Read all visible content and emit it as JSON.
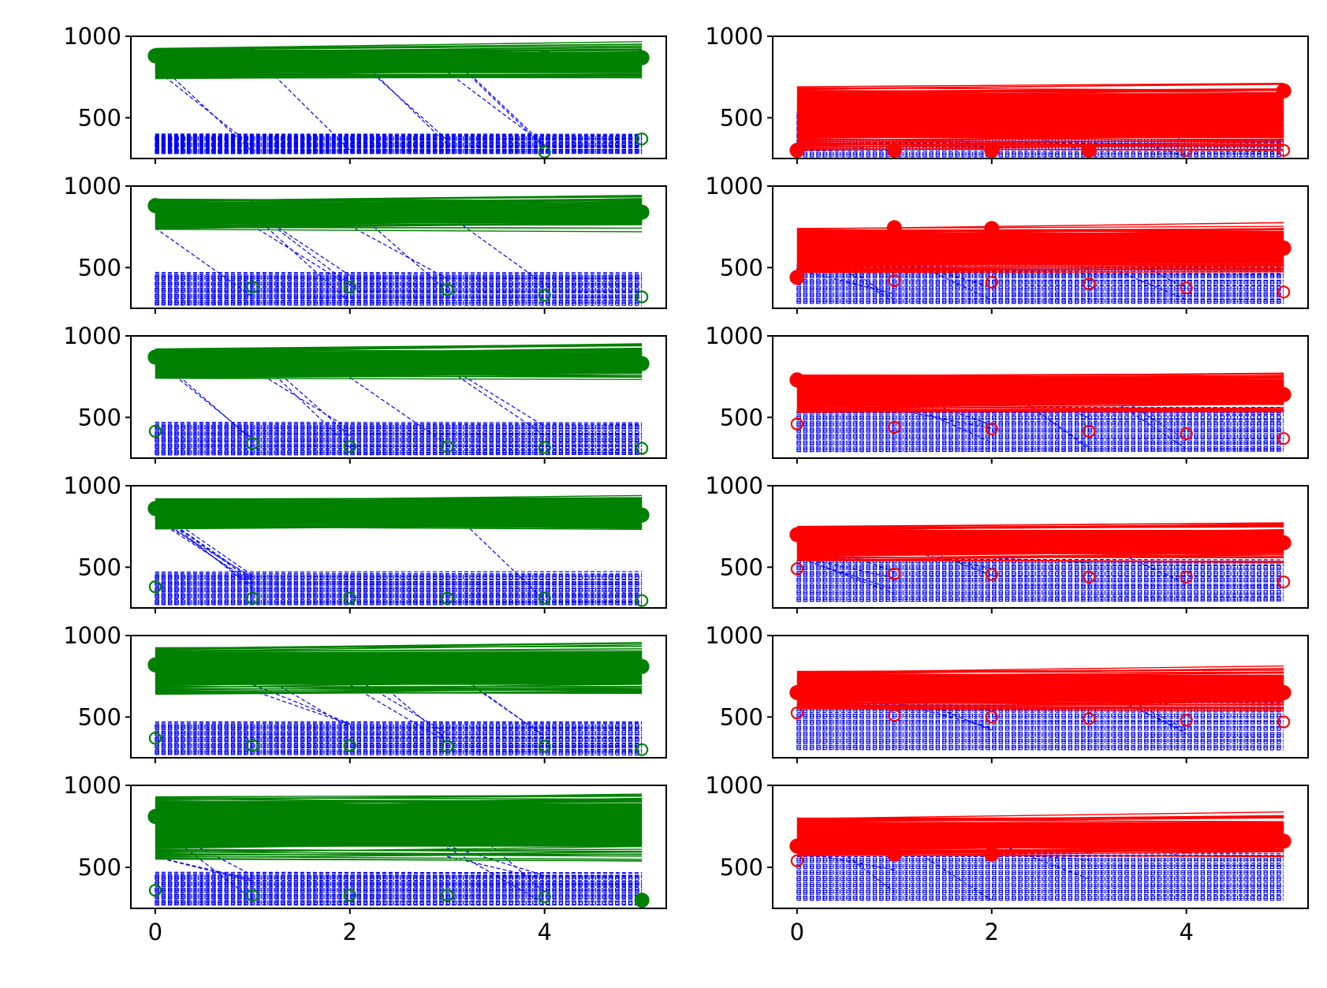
{
  "chart_data": {
    "type": "line",
    "layout": {
      "rows": 6,
      "cols": 2,
      "sharex": true
    },
    "title": "",
    "xlabel": "",
    "ylabel": "",
    "xlim": [
      -0.25,
      5.25
    ],
    "ylim": [
      250,
      1000
    ],
    "xticks": [
      0,
      2,
      4
    ],
    "yticks": [
      500,
      1000
    ],
    "x": [
      0,
      1,
      2,
      3,
      4,
      5
    ],
    "grid": false,
    "legend": "none",
    "colors": {
      "left_series": "#008000",
      "right_series": "#ff0000",
      "trajectories": "#0000ff",
      "axes": "#000000"
    },
    "panels": [
      {
        "row": 0,
        "col": 0,
        "color": "#008000",
        "band_high": [
          740,
          925
        ],
        "band_low": [
          280,
          400
        ],
        "markers_filled": [
          880,
          875,
          870,
          868,
          870,
          868
        ],
        "markers_open": [
          null,
          null,
          null,
          null,
          290,
          370
        ]
      },
      {
        "row": 0,
        "col": 1,
        "color": "#ff0000",
        "band_high": [
          300,
          690
        ],
        "band_low": [
          260,
          560
        ],
        "markers_filled": [
          300,
          300,
          300,
          300,
          null,
          665
        ],
        "markers_open": [
          null,
          null,
          null,
          null,
          300,
          300
        ]
      },
      {
        "row": 1,
        "col": 0,
        "color": "#008000",
        "band_high": [
          735,
          920
        ],
        "band_low": [
          270,
          470
        ],
        "markers_filled": [
          880,
          860,
          860,
          860,
          855,
          840
        ],
        "markers_open": [
          null,
          380,
          380,
          365,
          330,
          320
        ]
      },
      {
        "row": 1,
        "col": 1,
        "color": "#ff0000",
        "band_high": [
          470,
          740
        ],
        "band_low": [
          280,
          540
        ],
        "markers_filled": [
          440,
          745,
          740,
          640,
          640,
          620
        ],
        "markers_open": [
          null,
          420,
          410,
          400,
          375,
          350
        ]
      },
      {
        "row": 2,
        "col": 0,
        "color": "#008000",
        "band_high": [
          740,
          920
        ],
        "band_low": [
          270,
          470
        ],
        "markers_filled": [
          870,
          860,
          850,
          840,
          840,
          830
        ],
        "markers_open": [
          415,
          340,
          320,
          320,
          315,
          310
        ]
      },
      {
        "row": 2,
        "col": 1,
        "color": "#ff0000",
        "band_high": [
          530,
          760
        ],
        "band_low": [
          290,
          560
        ],
        "markers_filled": [
          730,
          650,
          650,
          650,
          650,
          640
        ],
        "markers_open": [
          460,
          440,
          430,
          415,
          400,
          370
        ]
      },
      {
        "row": 3,
        "col": 0,
        "color": "#008000",
        "band_high": [
          735,
          920
        ],
        "band_low": [
          270,
          470
        ],
        "markers_filled": [
          860,
          840,
          830,
          830,
          825,
          820
        ],
        "markers_open": [
          380,
          310,
          310,
          310,
          310,
          295
        ]
      },
      {
        "row": 3,
        "col": 1,
        "color": "#ff0000",
        "band_high": [
          540,
          750
        ],
        "band_low": [
          290,
          560
        ],
        "markers_filled": [
          700,
          650,
          650,
          650,
          650,
          650
        ],
        "markers_open": [
          490,
          460,
          455,
          440,
          440,
          410
        ]
      },
      {
        "row": 4,
        "col": 0,
        "color": "#008000",
        "band_high": [
          640,
          925
        ],
        "band_low": [
          270,
          470
        ],
        "markers_filled": [
          820,
          815,
          810,
          810,
          810,
          810
        ],
        "markers_open": [
          370,
          325,
          325,
          320,
          320,
          300
        ]
      },
      {
        "row": 4,
        "col": 1,
        "color": "#ff0000",
        "band_high": [
          550,
          780
        ],
        "band_low": [
          300,
          600
        ],
        "markers_filled": [
          650,
          650,
          650,
          650,
          650,
          650
        ],
        "markers_open": [
          525,
          510,
          500,
          490,
          480,
          470
        ]
      },
      {
        "row": 5,
        "col": 0,
        "color": "#008000",
        "band_high": [
          550,
          930
        ],
        "band_low": [
          270,
          470
        ],
        "markers_filled": [
          810,
          780,
          770,
          770,
          770,
          300
        ],
        "markers_open": [
          360,
          330,
          330,
          330,
          320,
          null
        ]
      },
      {
        "row": 5,
        "col": 1,
        "color": "#ff0000",
        "band_high": [
          570,
          800
        ],
        "band_low": [
          300,
          600
        ],
        "markers_filled": [
          630,
          580,
          580,
          630,
          630,
          660
        ],
        "markers_open": [
          540,
          null,
          null,
          null,
          null,
          null
        ]
      }
    ]
  }
}
